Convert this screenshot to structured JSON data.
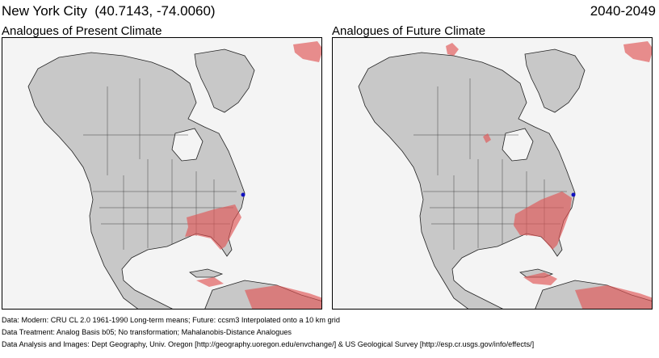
{
  "header": {
    "title": "New York City  (40.7143, -74.0060)",
    "period": "2040-2049"
  },
  "panels": [
    {
      "title": "Analogues of Present Climate"
    },
    {
      "title": "Analogues of Future Climate"
    }
  ],
  "footer": {
    "line1": "Data:  Modern: CRU CL 2.0 1961-1990 Long-term means; Future: ccsm3 Interpolated onto a 10 km grid",
    "line2": "Data Treatment:  Analog Basis b05; No transformation; Mahalanobis-Distance Analogues",
    "line3": "Data Analysis and Images:  Dept Geography, Univ. Oregon [http://geography.uoregon.edu/envchange/] & US Geological Survey [http://esp.cr.usgs.gov/info/effects/]"
  },
  "colors": {
    "land": "#c8c8c8",
    "water": "#f4f4f4",
    "analogue": "#e05555",
    "target_marker": "#1010c0"
  },
  "icons": {
    "target": "target-location-marker"
  }
}
